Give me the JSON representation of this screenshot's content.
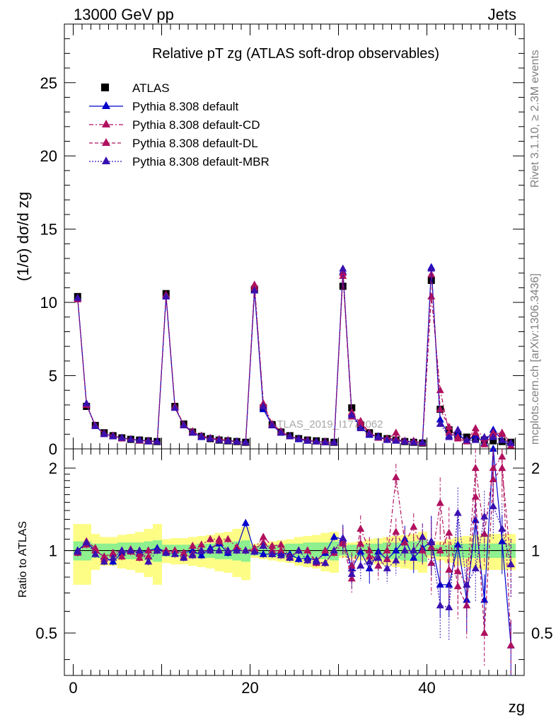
{
  "header": {
    "left": "13000 GeV pp",
    "right": "Jets"
  },
  "side": {
    "rivet": "Rivet 3.1.10, ≥ 2.3M events",
    "mcplots": "mcplots.cern.ch [arXiv:1306.3436]"
  },
  "watermark": "ATLAS_2019_I1772062",
  "colors": {
    "data": "#000000",
    "default": "#0000cc",
    "cd": "#b0105e",
    "dl": "#b0105e",
    "mbr": "#3a10b0",
    "band_inner": "#8ef08e",
    "band_outer": "#fdfd86"
  },
  "chart_data": [
    {
      "type": "scatter",
      "title": "Relative pT zg (ATLAS soft-drop observables)",
      "xlabel": "zg",
      "ylabel": "(1/σ) dσ/d zg",
      "xlim": [
        -1,
        51
      ],
      "ylim": [
        0,
        29
      ],
      "yticks": [
        0,
        5,
        10,
        15,
        20,
        25
      ],
      "xticks": [
        0,
        20,
        40
      ],
      "legend_position": "top-left",
      "x": [
        0.5,
        1.5,
        2.5,
        3.5,
        4.5,
        5.5,
        6.5,
        7.5,
        8.5,
        9.5,
        10.5,
        11.5,
        12.5,
        13.5,
        14.5,
        15.5,
        16.5,
        17.5,
        18.5,
        19.5,
        20.5,
        21.5,
        22.5,
        23.5,
        24.5,
        25.5,
        26.5,
        27.5,
        28.5,
        29.5,
        30.5,
        31.5,
        32.5,
        33.5,
        34.5,
        35.5,
        36.5,
        37.5,
        38.5,
        39.5,
        40.5,
        41.5,
        42.5,
        43.5,
        44.5,
        45.5,
        46.5,
        47.5,
        48.5,
        49.5
      ],
      "series": [
        {
          "name": "ATLAS",
          "marker": "square",
          "values": [
            10.4,
            2.9,
            1.6,
            1.1,
            0.9,
            0.75,
            0.65,
            0.6,
            0.55,
            0.5,
            10.6,
            2.9,
            1.7,
            1.15,
            0.85,
            0.7,
            0.6,
            0.55,
            0.5,
            0.45,
            10.9,
            2.8,
            1.65,
            1.15,
            0.9,
            0.7,
            0.6,
            0.55,
            0.5,
            0.45,
            11.1,
            2.8,
            1.6,
            1.1,
            0.85,
            0.7,
            0.6,
            0.5,
            0.45,
            0.4,
            11.5,
            2.7,
            1.3,
            0.95,
            0.8,
            0.7,
            0.6,
            0.55,
            0.5,
            0.45
          ]
        },
        {
          "name": "Pythia 8.308 default",
          "marker": "triangle",
          "line": "solid",
          "values": [
            10.3,
            3.0,
            1.55,
            1.05,
            0.85,
            0.75,
            0.65,
            0.6,
            0.55,
            0.5,
            10.4,
            2.8,
            1.65,
            1.15,
            0.8,
            0.7,
            0.65,
            0.55,
            0.5,
            0.45,
            10.8,
            2.7,
            1.6,
            1.1,
            0.85,
            0.65,
            0.55,
            0.5,
            0.45,
            0.45,
            12.1,
            2.4,
            1.5,
            0.95,
            0.85,
            0.65,
            0.6,
            0.55,
            0.45,
            0.45,
            12.4,
            2.0,
            0.9,
            1.0,
            0.55,
            0.9,
            0.4,
            1.3,
            0.6,
            0.2
          ]
        },
        {
          "name": "Pythia 8.308 default-CD",
          "marker": "triangle",
          "line": "dashdot",
          "values": [
            10.2,
            3.0,
            1.6,
            1.0,
            0.9,
            0.7,
            0.65,
            0.6,
            0.5,
            0.5,
            10.5,
            2.9,
            1.6,
            1.1,
            0.9,
            0.75,
            0.65,
            0.6,
            0.5,
            0.45,
            11.2,
            3.1,
            1.7,
            1.2,
            0.85,
            0.7,
            0.6,
            0.5,
            0.5,
            0.45,
            11.8,
            2.2,
            1.9,
            1.1,
            0.75,
            0.65,
            1.1,
            0.55,
            0.55,
            0.4,
            10.4,
            4.0,
            1.1,
            0.8,
            0.6,
            1.4,
            0.7,
            1.1,
            1.0,
            0.2
          ]
        },
        {
          "name": "Pythia 8.308 default-DL",
          "marker": "triangle",
          "line": "dashed",
          "values": [
            10.3,
            3.0,
            1.6,
            1.05,
            0.9,
            0.75,
            0.65,
            0.55,
            0.55,
            0.5,
            10.5,
            2.9,
            1.65,
            1.2,
            0.85,
            0.7,
            0.65,
            0.55,
            0.5,
            0.45,
            11.0,
            3.0,
            1.65,
            1.15,
            0.85,
            0.7,
            0.6,
            0.5,
            0.45,
            0.45,
            12.0,
            2.5,
            1.7,
            1.05,
            0.8,
            0.7,
            0.7,
            0.5,
            0.45,
            0.45,
            11.9,
            2.7,
            1.5,
            0.7,
            0.5,
            1.1,
            0.3,
            1.0,
            1.1,
            0.4
          ]
        },
        {
          "name": "Pythia 8.308 default-MBR",
          "marker": "triangle",
          "line": "dotted",
          "values": [
            10.3,
            3.1,
            1.55,
            1.0,
            0.85,
            0.75,
            0.65,
            0.6,
            0.5,
            0.5,
            10.4,
            2.8,
            1.6,
            1.1,
            0.85,
            0.7,
            0.6,
            0.55,
            0.5,
            0.45,
            10.8,
            2.9,
            1.6,
            1.1,
            0.85,
            0.7,
            0.55,
            0.5,
            0.45,
            0.45,
            12.3,
            2.3,
            1.4,
            1.0,
            0.8,
            0.6,
            0.55,
            0.5,
            0.45,
            0.45,
            12.3,
            1.7,
            0.8,
            1.3,
            0.6,
            0.6,
            0.8,
            0.8,
            0.6,
            0.4
          ]
        }
      ]
    },
    {
      "type": "scatter",
      "ylabel": "Ratio to ATLAS",
      "xlabel": "zg",
      "xlim": [
        -1,
        51
      ],
      "ylim": [
        0.35,
        2.35
      ],
      "yticks": [
        0.5,
        1,
        2
      ],
      "reference_line": 1,
      "bands": {
        "inner": [
          0.08,
          0.08,
          0.06,
          0.06,
          0.06,
          0.07,
          0.07,
          0.07,
          0.08,
          0.09,
          0.05,
          0.05,
          0.05,
          0.05,
          0.06,
          0.06,
          0.07,
          0.07,
          0.08,
          0.09,
          0.04,
          0.04,
          0.05,
          0.05,
          0.06,
          0.06,
          0.07,
          0.07,
          0.07,
          0.08,
          0.04,
          0.05,
          0.05,
          0.06,
          0.06,
          0.07,
          0.07,
          0.08,
          0.08,
          0.09,
          0.04,
          0.05,
          0.05,
          0.06,
          0.06,
          0.06,
          0.06,
          0.06,
          0.06,
          0.06
        ],
        "outer": [
          0.25,
          0.25,
          0.15,
          0.12,
          0.12,
          0.14,
          0.15,
          0.17,
          0.2,
          0.25,
          0.1,
          0.11,
          0.11,
          0.12,
          0.13,
          0.14,
          0.16,
          0.17,
          0.2,
          0.22,
          0.06,
          0.07,
          0.08,
          0.09,
          0.1,
          0.12,
          0.13,
          0.14,
          0.16,
          0.17,
          0.06,
          0.07,
          0.08,
          0.1,
          0.11,
          0.12,
          0.13,
          0.14,
          0.15,
          0.17,
          0.06,
          0.08,
          0.1,
          0.12,
          0.13,
          0.14,
          0.15,
          0.15,
          0.15,
          0.15
        ]
      },
      "series": [
        {
          "name": "Pythia 8.308 default",
          "values": [
            1.0,
            1.07,
            1.0,
            0.95,
            0.91,
            0.98,
            1.0,
            0.98,
            1.0,
            1.02,
            0.99,
            1.0,
            0.98,
            1.0,
            0.96,
            1.02,
            1.06,
            0.98,
            1.02,
            1.26,
            0.99,
            0.97,
            0.97,
            0.98,
            0.97,
            0.93,
            0.94,
            0.92,
            0.98,
            1.12,
            1.1,
            0.86,
            0.99,
            0.86,
            0.99,
            0.93,
            1.0,
            1.1,
            0.94,
            1.02,
            1.08,
            0.75,
            0.75,
            1.05,
            0.66,
            1.29,
            0.66,
            2.35,
            1.08,
            0.45
          ]
        },
        {
          "name": "Pythia 8.308 default-CD",
          "values": [
            0.98,
            1.08,
            1.02,
            0.93,
            0.97,
            0.95,
            1.01,
            0.97,
            0.95,
            1.0,
            1.0,
            1.0,
            0.95,
            0.97,
            1.05,
            1.1,
            1.1,
            1.1,
            1.03,
            1.0,
            1.02,
            1.12,
            1.04,
            1.05,
            0.95,
            1.0,
            1.0,
            0.91,
            1.0,
            0.98,
            1.06,
            0.79,
            1.2,
            1.0,
            0.88,
            0.93,
            1.85,
            1.07,
            1.22,
            1.0,
            0.9,
            1.49,
            0.85,
            0.84,
            0.75,
            2.0,
            1.15,
            2.0,
            2.2,
            0.45
          ]
        },
        {
          "name": "Pythia 8.308 default-DL",
          "values": [
            0.99,
            1.05,
            1.0,
            0.95,
            0.98,
            1.0,
            0.99,
            0.94,
            1.0,
            1.0,
            0.99,
            1.0,
            0.98,
            1.04,
            1.0,
            1.0,
            1.08,
            1.0,
            1.0,
            1.0,
            1.01,
            1.07,
            1.0,
            1.0,
            0.94,
            1.0,
            1.0,
            0.9,
            0.9,
            1.0,
            1.08,
            0.88,
            1.06,
            0.95,
            0.94,
            1.0,
            1.17,
            1.0,
            1.0,
            1.12,
            1.03,
            1.0,
            1.16,
            0.74,
            0.63,
            1.57,
            0.5,
            1.82,
            2.0,
            0.89
          ]
        },
        {
          "name": "Pythia 8.308 default-MBR",
          "values": [
            0.99,
            1.07,
            0.97,
            0.91,
            0.94,
            1.0,
            1.0,
            1.0,
            0.91,
            1.0,
            0.98,
            0.97,
            0.94,
            0.96,
            1.0,
            1.0,
            1.0,
            1.0,
            1.0,
            1.0,
            0.99,
            1.04,
            0.97,
            0.96,
            0.94,
            1.0,
            0.92,
            0.91,
            0.9,
            1.0,
            1.11,
            0.82,
            0.88,
            0.91,
            0.94,
            0.86,
            0.92,
            1.0,
            1.0,
            1.12,
            1.07,
            0.63,
            0.62,
            1.37,
            0.75,
            0.86,
            1.33,
            1.45,
            1.2,
            0.89
          ]
        }
      ]
    }
  ]
}
